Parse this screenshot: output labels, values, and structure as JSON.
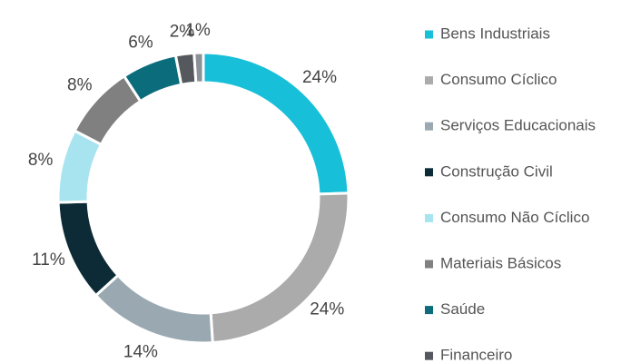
{
  "chart_data": {
    "type": "pie",
    "categories": [
      "Bens Industriais",
      "Consumo Cíclico",
      "Serviços Educacionais",
      "Construção Civil",
      "Consumo Não Cíclico",
      "Materiais Básicos",
      "Saúde",
      "Financeiro",
      null
    ],
    "values": [
      24,
      24,
      14,
      11,
      8,
      8,
      6,
      2,
      1
    ],
    "value_labels": [
      "24%",
      "24%",
      "14%",
      "11%",
      "8%",
      "8%",
      "6%",
      "2%",
      "1%"
    ],
    "colors": [
      "#17bfd8",
      "#ababab",
      "#9aa9b1",
      "#0d2b36",
      "#a8e4f0",
      "#808080",
      "#0b6d7c",
      "#55595d",
      "#8c9196"
    ],
    "legend": "right"
  }
}
